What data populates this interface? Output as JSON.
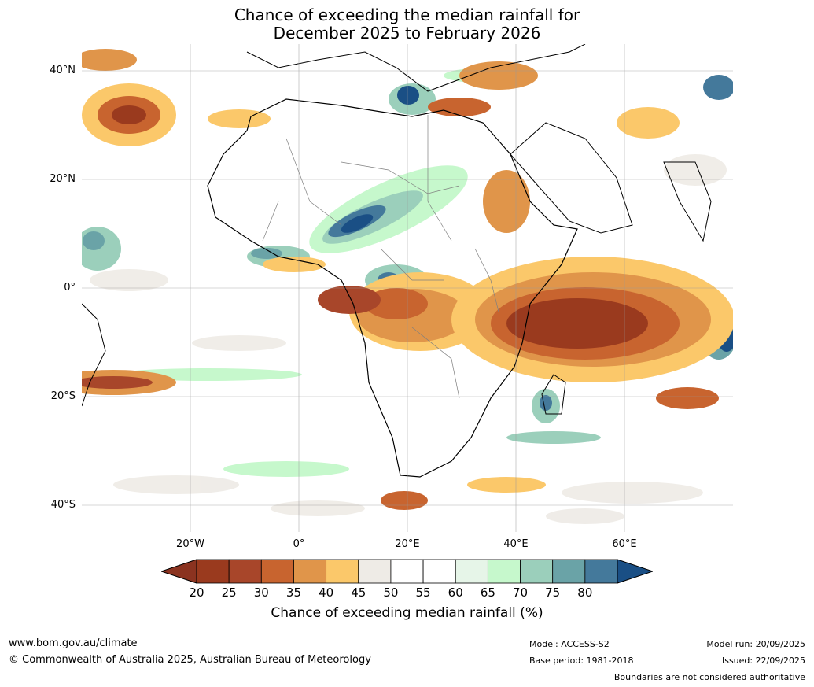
{
  "title_line1": "Chance of exceeding the median rainfall for",
  "title_line2": "December 2025 to February 2026",
  "map": {
    "lat_labels": [
      "40°N",
      "20°N",
      "0°",
      "20°S",
      "40°S"
    ],
    "lon_labels": [
      "20°W",
      "0°",
      "20°E",
      "40°E",
      "60°E"
    ],
    "land_color": "#ffffff",
    "grid": true
  },
  "legend": {
    "ticks": [
      "20",
      "25",
      "30",
      "35",
      "40",
      "45",
      "50",
      "55",
      "60",
      "65",
      "70",
      "75",
      "80"
    ],
    "colors": [
      "#9a3a1e",
      "#a8462a",
      "#c8642f",
      "#e0954a",
      "#fbc86a",
      "#eeebe6",
      "#ffffff",
      "#ffffff",
      "#e6f5e8",
      "#c6f8cc",
      "#9bcfbb",
      "#6aa3a7",
      "#44799b"
    ],
    "low_arrow_color": "#8b3320",
    "high_arrow_color": "#1a4f85",
    "title": "Chance of exceeding median rainfall (%)"
  },
  "footer": {
    "website": "www.bom.gov.au/climate",
    "copyright": "© Commonwealth of Australia 2025, Australian Bureau of Meteorology",
    "model": "Model: ACCESS-S2",
    "base_period": "Base period: 1981-2018",
    "model_run": "Model run: 20/09/2025",
    "issued": "Issued: 22/09/2025",
    "disclaimer": "Boundaries are not considered authoritative"
  }
}
